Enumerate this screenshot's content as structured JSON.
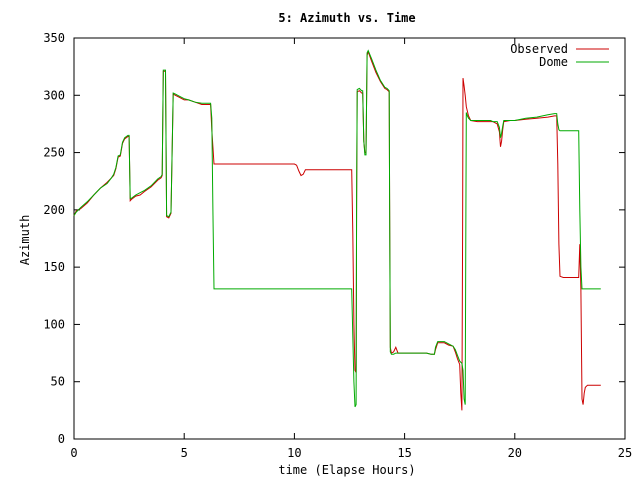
{
  "chart_data": {
    "type": "line",
    "title": "5: Azimuth vs. Time",
    "xlabel": "time (Elapse Hours)",
    "ylabel": "Azimuth",
    "xlim": [
      0,
      25
    ],
    "ylim": [
      0,
      350
    ],
    "xticks": [
      0,
      5,
      10,
      15,
      20,
      25
    ],
    "yticks": [
      0,
      50,
      100,
      150,
      200,
      250,
      300,
      350
    ],
    "legend": "top-right",
    "grid": false,
    "series": [
      {
        "name": "Observed",
        "color": "#cc0000",
        "points": [
          [
            0,
            195
          ],
          [
            0.1,
            199
          ],
          [
            0.3,
            201
          ],
          [
            0.6,
            206
          ],
          [
            0.9,
            213
          ],
          [
            1.2,
            219
          ],
          [
            1.5,
            224
          ],
          [
            1.7,
            228
          ],
          [
            1.8,
            230
          ],
          [
            1.9,
            236
          ],
          [
            2.0,
            246
          ],
          [
            2.1,
            247
          ],
          [
            2.2,
            258
          ],
          [
            2.3,
            262
          ],
          [
            2.45,
            264
          ],
          [
            2.5,
            264
          ],
          [
            2.55,
            208
          ],
          [
            2.6,
            209
          ],
          [
            2.8,
            212
          ],
          [
            3.0,
            213
          ],
          [
            3.2,
            216
          ],
          [
            3.5,
            220
          ],
          [
            3.8,
            226
          ],
          [
            3.95,
            228
          ],
          [
            4.0,
            230
          ],
          [
            4.05,
            321
          ],
          [
            4.15,
            321
          ],
          [
            4.2,
            194
          ],
          [
            4.3,
            193
          ],
          [
            4.4,
            197
          ],
          [
            4.5,
            301
          ],
          [
            4.6,
            300
          ],
          [
            4.8,
            298
          ],
          [
            5.0,
            296
          ],
          [
            5.2,
            296
          ],
          [
            5.5,
            294
          ],
          [
            5.8,
            292
          ],
          [
            6.0,
            292
          ],
          [
            6.2,
            292
          ],
          [
            6.25,
            270
          ],
          [
            6.3,
            255
          ],
          [
            6.35,
            240
          ],
          [
            6.5,
            240
          ],
          [
            7.0,
            240
          ],
          [
            8.0,
            240
          ],
          [
            9.0,
            240
          ],
          [
            10.0,
            240
          ],
          [
            10.1,
            239
          ],
          [
            10.2,
            234
          ],
          [
            10.3,
            230
          ],
          [
            10.4,
            231
          ],
          [
            10.5,
            235
          ],
          [
            11.0,
            235
          ],
          [
            11.5,
            235
          ],
          [
            12.0,
            235
          ],
          [
            12.5,
            235
          ],
          [
            12.6,
            235
          ],
          [
            12.65,
            180
          ],
          [
            12.7,
            100
          ],
          [
            12.75,
            60
          ],
          [
            12.8,
            58
          ],
          [
            12.82,
            200
          ],
          [
            12.85,
            303
          ],
          [
            12.95,
            304
          ],
          [
            13.0,
            303
          ],
          [
            13.05,
            302
          ],
          [
            13.1,
            302
          ],
          [
            13.15,
            260
          ],
          [
            13.2,
            250
          ],
          [
            13.25,
            250
          ],
          [
            13.3,
            335
          ],
          [
            13.35,
            338
          ],
          [
            13.5,
            330
          ],
          [
            13.7,
            320
          ],
          [
            13.9,
            312
          ],
          [
            14.1,
            306
          ],
          [
            14.2,
            305
          ],
          [
            14.3,
            303
          ],
          [
            14.32,
            210
          ],
          [
            14.35,
            80
          ],
          [
            14.4,
            75
          ],
          [
            14.5,
            76
          ],
          [
            14.6,
            80
          ],
          [
            14.7,
            75
          ],
          [
            15.0,
            75
          ],
          [
            15.5,
            75
          ],
          [
            16.0,
            75
          ],
          [
            16.2,
            74
          ],
          [
            16.35,
            74
          ],
          [
            16.4,
            78
          ],
          [
            16.5,
            84
          ],
          [
            16.8,
            84
          ],
          [
            17.0,
            82
          ],
          [
            17.2,
            81
          ],
          [
            17.3,
            76
          ],
          [
            17.4,
            70
          ],
          [
            17.5,
            65
          ],
          [
            17.55,
            40
          ],
          [
            17.6,
            25
          ],
          [
            17.63,
            180
          ],
          [
            17.65,
            315
          ],
          [
            17.7,
            308
          ],
          [
            17.75,
            300
          ],
          [
            17.8,
            290
          ],
          [
            17.9,
            282
          ],
          [
            18.0,
            278
          ],
          [
            18.3,
            277
          ],
          [
            18.6,
            277
          ],
          [
            18.9,
            277
          ],
          [
            19.0,
            277
          ],
          [
            19.2,
            275
          ],
          [
            19.3,
            268
          ],
          [
            19.35,
            255
          ],
          [
            19.4,
            260
          ],
          [
            19.45,
            270
          ],
          [
            19.5,
            277
          ],
          [
            19.8,
            278
          ],
          [
            20.0,
            278
          ],
          [
            20.5,
            279
          ],
          [
            21.0,
            280
          ],
          [
            21.5,
            281
          ],
          [
            21.8,
            282
          ],
          [
            21.9,
            282
          ],
          [
            21.95,
            240
          ],
          [
            22.0,
            170
          ],
          [
            22.05,
            142
          ],
          [
            22.2,
            141
          ],
          [
            22.5,
            141
          ],
          [
            22.8,
            141
          ],
          [
            22.9,
            141
          ],
          [
            22.95,
            170
          ],
          [
            23.0,
            130
          ],
          [
            23.05,
            35
          ],
          [
            23.1,
            30
          ],
          [
            23.15,
            40
          ],
          [
            23.2,
            45
          ],
          [
            23.3,
            47
          ],
          [
            23.6,
            47
          ],
          [
            23.9,
            47
          ]
        ]
      },
      {
        "name": "Dome",
        "color": "#00aa00",
        "points": [
          [
            0,
            195
          ],
          [
            0.1,
            198
          ],
          [
            0.3,
            202
          ],
          [
            0.6,
            207
          ],
          [
            0.9,
            213
          ],
          [
            1.2,
            219
          ],
          [
            1.5,
            223
          ],
          [
            1.7,
            228
          ],
          [
            1.8,
            231
          ],
          [
            1.9,
            237
          ],
          [
            2.0,
            247
          ],
          [
            2.1,
            248
          ],
          [
            2.2,
            259
          ],
          [
            2.3,
            263
          ],
          [
            2.45,
            265
          ],
          [
            2.5,
            265
          ],
          [
            2.55,
            210
          ],
          [
            2.6,
            210
          ],
          [
            2.8,
            213
          ],
          [
            3.0,
            215
          ],
          [
            3.2,
            217
          ],
          [
            3.5,
            221
          ],
          [
            3.8,
            227
          ],
          [
            3.95,
            229
          ],
          [
            4.0,
            231
          ],
          [
            4.05,
            322
          ],
          [
            4.15,
            322
          ],
          [
            4.2,
            195
          ],
          [
            4.3,
            194
          ],
          [
            4.4,
            198
          ],
          [
            4.5,
            302
          ],
          [
            4.6,
            301
          ],
          [
            4.8,
            299
          ],
          [
            5.0,
            297
          ],
          [
            5.2,
            296
          ],
          [
            5.5,
            294
          ],
          [
            5.8,
            293
          ],
          [
            6.0,
            293
          ],
          [
            6.2,
            293
          ],
          [
            6.25,
            280
          ],
          [
            6.3,
            200
          ],
          [
            6.35,
            131
          ],
          [
            6.5,
            131
          ],
          [
            7.0,
            131
          ],
          [
            8.0,
            131
          ],
          [
            9.0,
            131
          ],
          [
            10.0,
            131
          ],
          [
            11.0,
            131
          ],
          [
            12.0,
            131
          ],
          [
            12.5,
            131
          ],
          [
            12.6,
            131
          ],
          [
            12.65,
            90
          ],
          [
            12.7,
            50
          ],
          [
            12.75,
            28
          ],
          [
            12.8,
            30
          ],
          [
            12.82,
            210
          ],
          [
            12.85,
            305
          ],
          [
            12.95,
            306
          ],
          [
            13.0,
            305
          ],
          [
            13.05,
            304
          ],
          [
            13.1,
            304
          ],
          [
            13.15,
            260
          ],
          [
            13.2,
            248
          ],
          [
            13.25,
            248
          ],
          [
            13.3,
            337
          ],
          [
            13.35,
            339
          ],
          [
            13.5,
            332
          ],
          [
            13.7,
            322
          ],
          [
            13.9,
            313
          ],
          [
            14.1,
            307
          ],
          [
            14.2,
            306
          ],
          [
            14.3,
            304
          ],
          [
            14.32,
            210
          ],
          [
            14.35,
            76
          ],
          [
            14.4,
            74
          ],
          [
            14.5,
            74
          ],
          [
            14.6,
            75
          ],
          [
            14.7,
            75
          ],
          [
            15.0,
            75
          ],
          [
            15.5,
            75
          ],
          [
            16.0,
            75
          ],
          [
            16.2,
            74
          ],
          [
            16.35,
            74
          ],
          [
            16.4,
            80
          ],
          [
            16.5,
            85
          ],
          [
            16.8,
            85
          ],
          [
            17.0,
            83
          ],
          [
            17.2,
            81
          ],
          [
            17.3,
            78
          ],
          [
            17.4,
            73
          ],
          [
            17.5,
            68
          ],
          [
            17.6,
            66
          ],
          [
            17.65,
            60
          ],
          [
            17.7,
            35
          ],
          [
            17.75,
            30
          ],
          [
            17.78,
            200
          ],
          [
            17.8,
            285
          ],
          [
            17.85,
            282
          ],
          [
            17.9,
            280
          ],
          [
            18.0,
            278
          ],
          [
            18.3,
            278
          ],
          [
            18.6,
            278
          ],
          [
            18.9,
            278
          ],
          [
            19.0,
            277
          ],
          [
            19.2,
            277
          ],
          [
            19.3,
            272
          ],
          [
            19.35,
            263
          ],
          [
            19.4,
            267
          ],
          [
            19.45,
            273
          ],
          [
            19.5,
            278
          ],
          [
            19.8,
            278
          ],
          [
            20.0,
            278
          ],
          [
            20.5,
            280
          ],
          [
            21.0,
            281
          ],
          [
            21.5,
            283
          ],
          [
            21.8,
            284
          ],
          [
            21.9,
            284
          ],
          [
            21.95,
            275
          ],
          [
            22.0,
            270
          ],
          [
            22.05,
            269
          ],
          [
            22.2,
            269
          ],
          [
            22.5,
            269
          ],
          [
            22.8,
            269
          ],
          [
            22.9,
            269
          ],
          [
            22.95,
            200
          ],
          [
            23.0,
            150
          ],
          [
            23.05,
            131
          ],
          [
            23.1,
            131
          ],
          [
            23.3,
            131
          ],
          [
            23.6,
            131
          ],
          [
            23.9,
            131
          ]
        ]
      }
    ]
  }
}
